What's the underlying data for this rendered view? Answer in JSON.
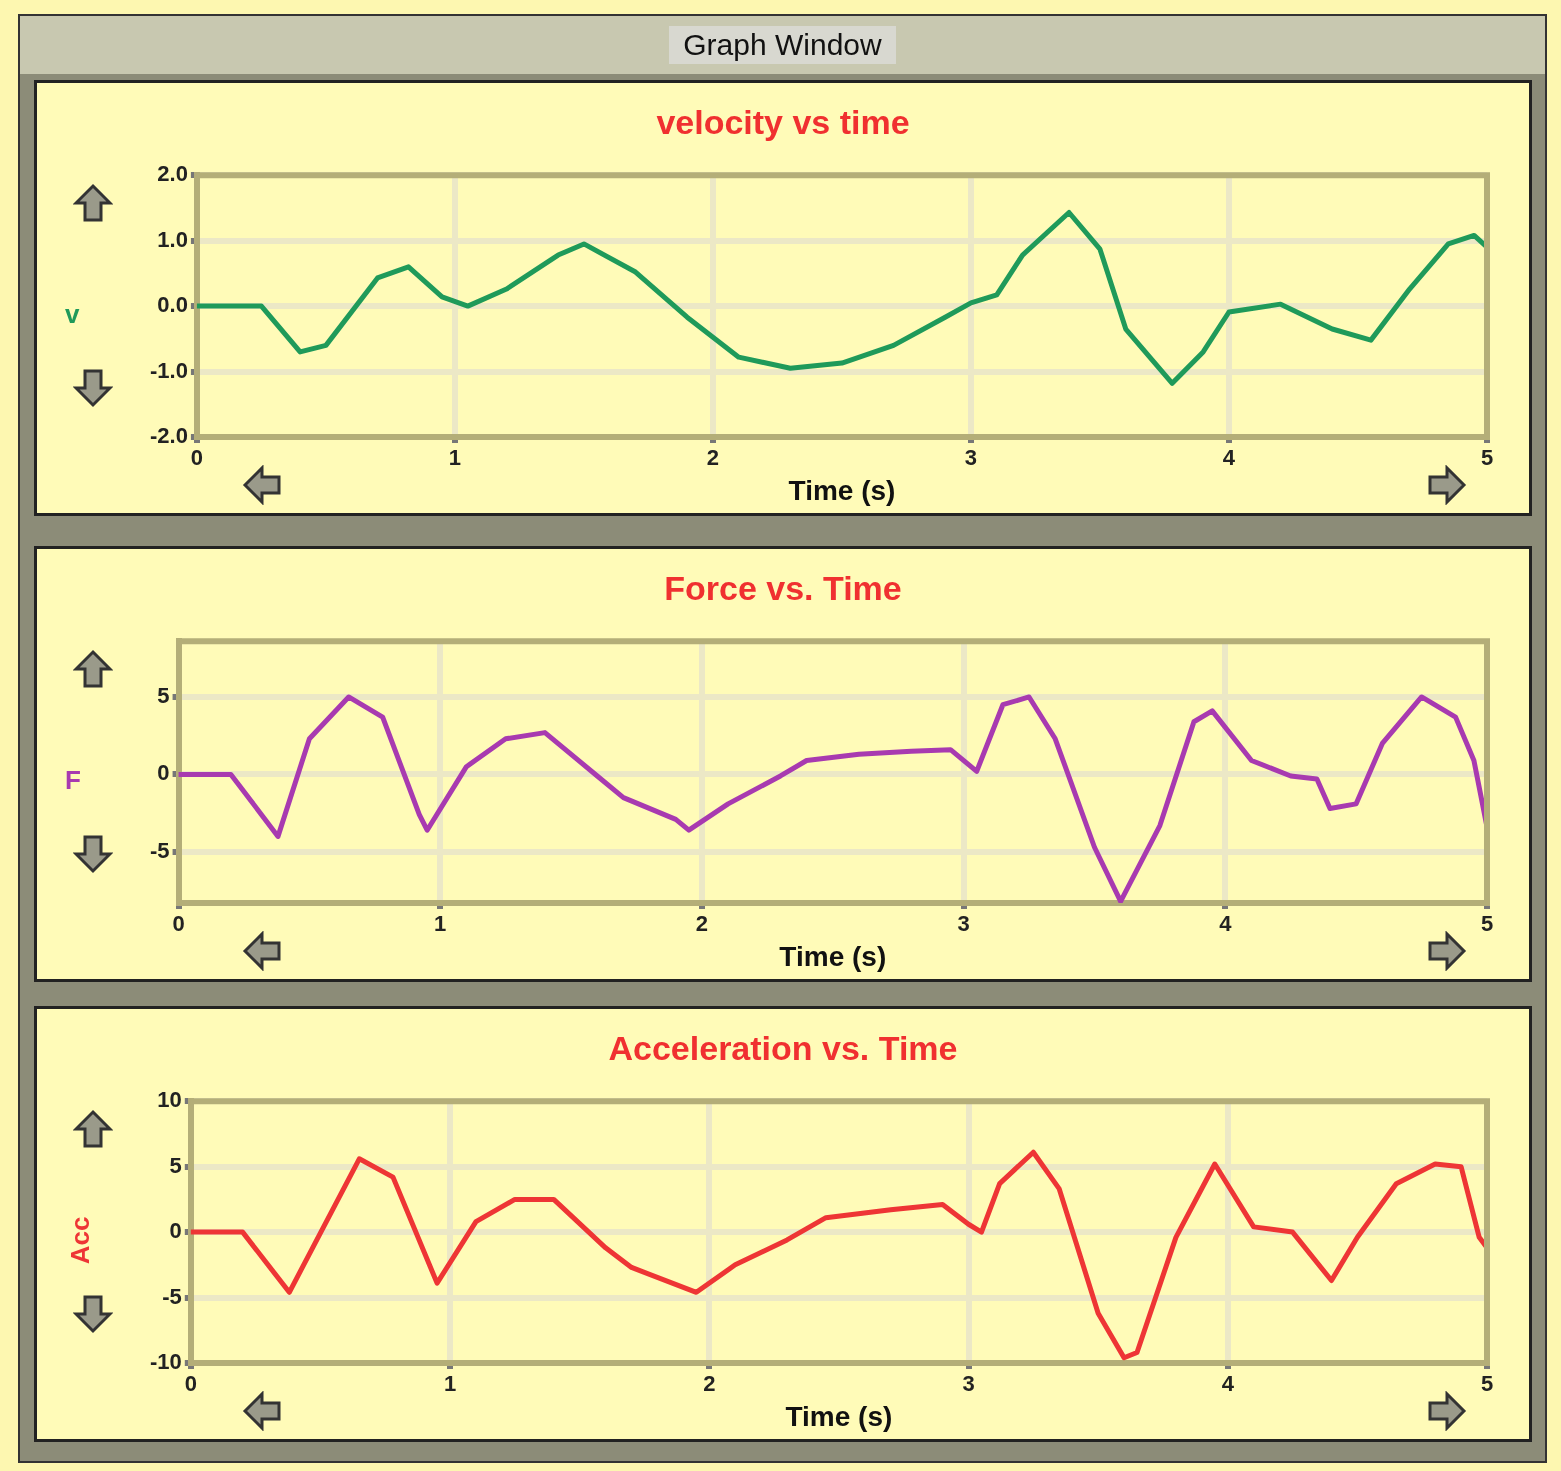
{
  "chart_data": [
    {
      "type": "line",
      "title": "velocity vs time",
      "xlabel": "Time (s)",
      "ylabel": "v",
      "annotations": [
        "Graph Window"
      ],
      "xlim": [
        0,
        5
      ],
      "xticks": [
        0,
        1,
        2,
        3,
        4,
        5
      ],
      "ylim": [
        -2,
        2
      ],
      "yticks": [
        {
          "value": 2,
          "label": "2.0"
        },
        {
          "value": 1,
          "label": "1.0"
        },
        {
          "value": 0,
          "label": "0.0"
        },
        {
          "value": -1,
          "label": "-1.0"
        },
        {
          "value": -2,
          "label": "-2.0"
        }
      ],
      "grid": true,
      "x": [
        0,
        0.25,
        0.4,
        0.5,
        0.7,
        0.82,
        0.95,
        1.05,
        1.2,
        1.4,
        1.5,
        1.7,
        1.9,
        2.1,
        2.3,
        2.5,
        2.7,
        2.9,
        3.0,
        3.1,
        3.2,
        3.38,
        3.5,
        3.6,
        3.78,
        3.9,
        4.0,
        4.2,
        4.4,
        4.55,
        4.7,
        4.85,
        4.95,
        5
      ],
      "series": [
        {
          "color": "#1f9a5a",
          "values": [
            0,
            0,
            -0.7,
            -0.6,
            0.43,
            0.6,
            0.14,
            0,
            0.26,
            0.78,
            0.95,
            0.52,
            -0.17,
            -0.78,
            -0.95,
            -0.87,
            -0.6,
            -0.17,
            0.05,
            0.17,
            0.78,
            1.43,
            0.87,
            -0.35,
            -1.18,
            -0.7,
            -0.09,
            0.03,
            -0.35,
            -0.52,
            0.26,
            0.95,
            1.08,
            0.9
          ]
        }
      ]
    },
    {
      "type": "line",
      "title": "Force vs. Time",
      "xlabel": "Time (s)",
      "ylabel": "F",
      "xlim": [
        0,
        5
      ],
      "xticks": [
        0,
        1,
        2,
        3,
        4,
        5
      ],
      "ylim": [
        -8.3,
        8.6
      ],
      "yticks": [
        5,
        0,
        -5
      ],
      "grid": true,
      "x": [
        0,
        0.2,
        0.38,
        0.5,
        0.65,
        0.78,
        0.92,
        0.95,
        1.1,
        1.25,
        1.4,
        1.6,
        1.7,
        1.9,
        1.95,
        2.1,
        2.3,
        2.4,
        2.6,
        2.8,
        2.95,
        3.05,
        3.15,
        3.25,
        3.35,
        3.5,
        3.6,
        3.75,
        3.88,
        3.95,
        4.1,
        4.25,
        4.35,
        4.4,
        4.5,
        4.6,
        4.75,
        4.88,
        4.95,
        5
      ],
      "series": [
        {
          "color": "#a83ab0",
          "values": [
            0,
            0,
            -4,
            2.3,
            5,
            3.7,
            -2.6,
            -3.6,
            0.5,
            2.3,
            2.7,
            -0.1,
            -1.5,
            -2.9,
            -3.6,
            -1.9,
            -0.1,
            0.9,
            1.3,
            1.5,
            1.6,
            0.2,
            4.5,
            5,
            2.3,
            -4.7,
            -8.2,
            -3.3,
            3.4,
            4.1,
            0.9,
            -0.1,
            -0.3,
            -2.2,
            -1.9,
            2,
            5,
            3.7,
            0.9,
            -3.4
          ]
        }
      ]
    },
    {
      "type": "line",
      "title": "Acceleration vs. Time",
      "xlabel": "Time (s)",
      "ylabel": "Acc",
      "xlim": [
        0,
        5
      ],
      "xticks": [
        0,
        1,
        2,
        3,
        4,
        5
      ],
      "ylim": [
        -10,
        10
      ],
      "yticks": [
        10,
        5,
        0,
        -5,
        -10
      ],
      "grid": true,
      "x": [
        0,
        0.2,
        0.38,
        0.65,
        0.78,
        0.95,
        1.1,
        1.25,
        1.4,
        1.6,
        1.7,
        1.95,
        2.1,
        2.3,
        2.45,
        2.7,
        2.9,
        3.0,
        3.05,
        3.12,
        3.25,
        3.35,
        3.5,
        3.6,
        3.65,
        3.8,
        3.95,
        4.1,
        4.25,
        4.4,
        4.5,
        4.65,
        4.8,
        4.9,
        4.97,
        5
      ],
      "series": [
        {
          "color": "#ee3535",
          "values": [
            0,
            0,
            -4.6,
            5.6,
            4.2,
            -3.9,
            0.8,
            2.5,
            2.5,
            -1.2,
            -2.7,
            -4.6,
            -2.5,
            -0.6,
            1.1,
            1.7,
            2.1,
            0.6,
            0,
            3.7,
            6.1,
            3.3,
            -6.2,
            -9.6,
            -9.2,
            -0.4,
            5.2,
            0.4,
            0,
            -3.7,
            -0.4,
            3.7,
            5.2,
            5,
            -0.4,
            -1.2
          ]
        }
      ]
    }
  ]
}
